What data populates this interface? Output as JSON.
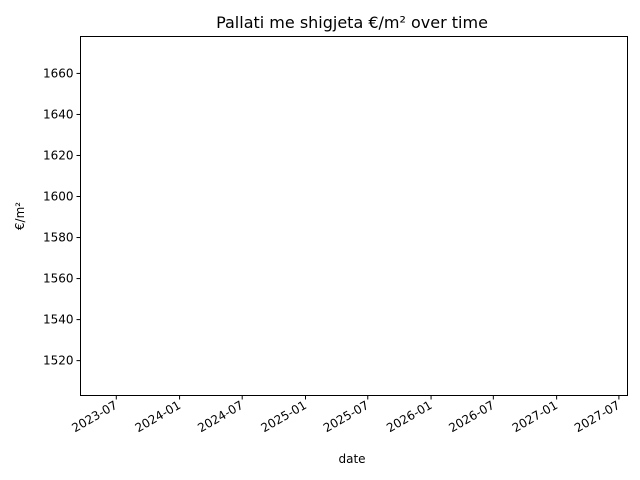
{
  "chart_data": {
    "type": "line",
    "title": "Pallati me shigjeta €/m² over time",
    "xlabel": "date",
    "ylabel": "€/m²",
    "x_ticks": [
      "2023-07",
      "2024-01",
      "2024-07",
      "2025-01",
      "2025-07",
      "2026-01",
      "2026-07",
      "2027-01",
      "2027-07"
    ],
    "y_ticks": [
      1520,
      1540,
      1560,
      1580,
      1600,
      1620,
      1640,
      1660
    ],
    "xlim": [
      "2023-03-19",
      "2027-07-26"
    ],
    "ylim": [
      1503,
      1678
    ],
    "series": [],
    "grid": false,
    "legend": "none"
  }
}
